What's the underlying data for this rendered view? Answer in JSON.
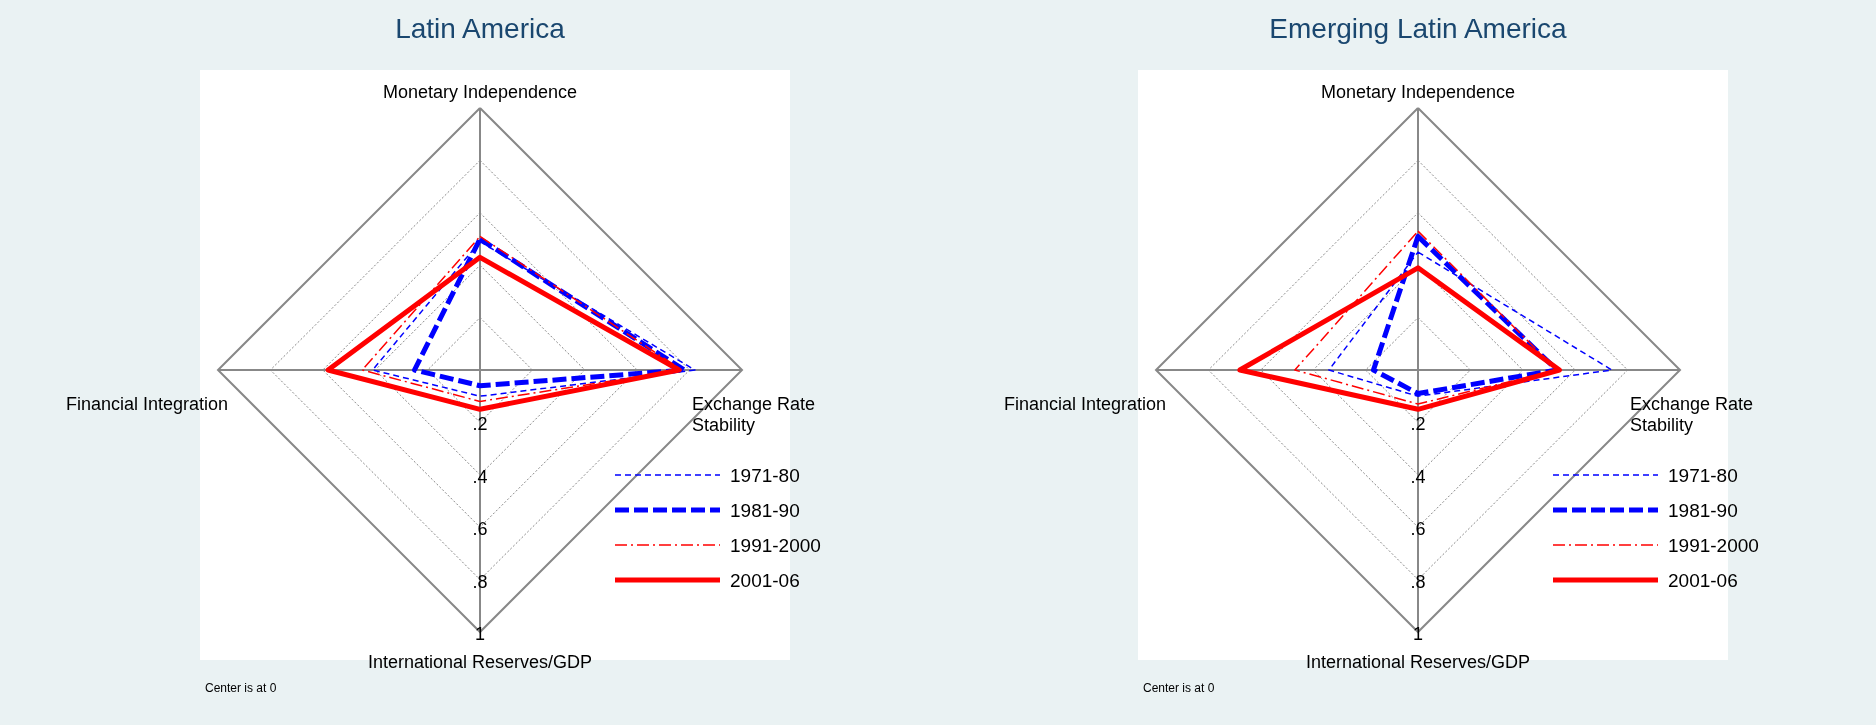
{
  "chart_data": [
    {
      "type": "radar",
      "title": "Latin America",
      "categories": [
        "Monetary Independence",
        "Exchange Rate Stability",
        "International Reserves/GDP",
        "Financial Integration"
      ],
      "ylim": [
        0,
        1
      ],
      "yticks": [
        {
          "value": 0.2,
          "label": ".2"
        },
        {
          "value": 0.4,
          "label": ".4"
        },
        {
          "value": 0.6,
          "label": ".6"
        },
        {
          "value": 0.8,
          "label": ".8"
        },
        1
      ],
      "grid": true,
      "legend": "bottom right",
      "annotations": [
        "Center is at 0"
      ],
      "series": [
        {
          "name": "1971-80",
          "color": "#0000ff",
          "line_style": "dashed",
          "values": [
            0.49,
            0.82,
            0.1,
            0.41
          ]
        },
        {
          "name": "1981-90",
          "color": "#0000ff",
          "line_style": "dashed",
          "values": [
            0.5,
            0.78,
            0.06,
            0.25
          ]
        },
        {
          "name": "1991-2000",
          "color": "#ff0000",
          "line_style": "dashdot",
          "values": [
            0.51,
            0.77,
            0.12,
            0.45
          ]
        },
        {
          "name": "2001-06",
          "color": "#ff0000",
          "line_style": "solid",
          "values": [
            0.43,
            0.76,
            0.15,
            0.58
          ]
        }
      ]
    },
    {
      "type": "radar",
      "title": "Emerging Latin America",
      "categories": [
        "Monetary Independence",
        "Exchange Rate Stability",
        "International Reserves/GDP",
        "Financial Integration"
      ],
      "ylim": [
        0,
        1
      ],
      "yticks": [
        {
          "value": 0.2,
          "label": ".2"
        },
        {
          "value": 0.4,
          "label": ".4"
        },
        {
          "value": 0.6,
          "label": ".6"
        },
        {
          "value": 0.8,
          "label": ".8"
        },
        1
      ],
      "grid": true,
      "legend": "bottom right",
      "annotations": [
        "Center is at 0"
      ],
      "series": [
        {
          "name": "1971-80",
          "color": "#0000ff",
          "line_style": "dashed",
          "values": [
            0.45,
            0.74,
            0.1,
            0.34
          ]
        },
        {
          "name": "1981-90",
          "color": "#0000ff",
          "line_style": "dashed",
          "values": [
            0.51,
            0.53,
            0.09,
            0.17
          ]
        },
        {
          "name": "1991-2000",
          "color": "#ff0000",
          "line_style": "dashdot",
          "values": [
            0.53,
            0.53,
            0.13,
            0.47
          ]
        },
        {
          "name": "2001-06",
          "color": "#ff0000",
          "line_style": "solid",
          "values": [
            0.39,
            0.54,
            0.15,
            0.68
          ]
        }
      ]
    }
  ]
}
